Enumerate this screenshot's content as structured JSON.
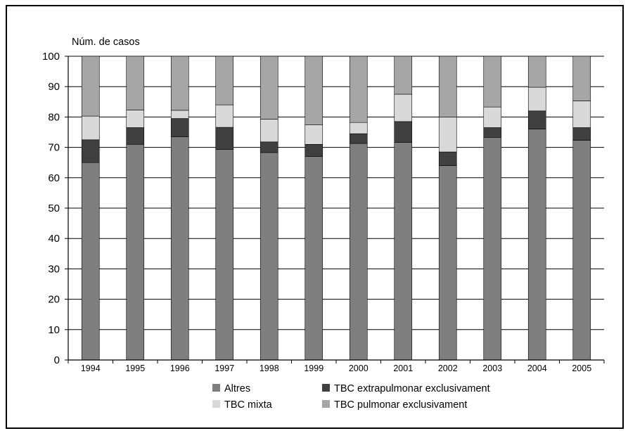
{
  "chart_data": {
    "type": "bar",
    "stacked": true,
    "title": "",
    "ylabel": "Núm. de casos",
    "xlabel": "",
    "ylim": [
      0,
      100
    ],
    "yticks": [
      0,
      10,
      20,
      30,
      40,
      50,
      60,
      70,
      80,
      90,
      100
    ],
    "grid": true,
    "legend_position": "bottom",
    "categories": [
      "1994",
      "1995",
      "1996",
      "1997",
      "1998",
      "1999",
      "2000",
      "2001",
      "2002",
      "2003",
      "2004",
      "2005"
    ],
    "series": [
      {
        "name": "Altres",
        "color": "#7f7f7f",
        "values": [
          65,
          71,
          73.5,
          69.3,
          68.3,
          67,
          71.3,
          71.6,
          64,
          73.3,
          76,
          72.3
        ]
      },
      {
        "name": "TBC extrapulmonar exclusivament",
        "color": "#404040",
        "values": [
          7.5,
          5.5,
          6,
          7.3,
          3.5,
          4,
          3.2,
          6.9,
          4.5,
          3.2,
          6,
          4.2
        ]
      },
      {
        "name": "TBC mixta",
        "color": "#d9d9d9",
        "values": [
          7.8,
          5.8,
          2.7,
          7.4,
          7.5,
          6.4,
          3.7,
          9,
          11.5,
          6.8,
          7.8,
          8.8
        ]
      },
      {
        "name": "TBC pulmonar exclusivament",
        "color": "#a6a6a6",
        "values": [
          19.7,
          17.7,
          17.8,
          16,
          20.7,
          22.6,
          21.8,
          12.5,
          20,
          16.7,
          10.2,
          14.7
        ]
      }
    ]
  }
}
